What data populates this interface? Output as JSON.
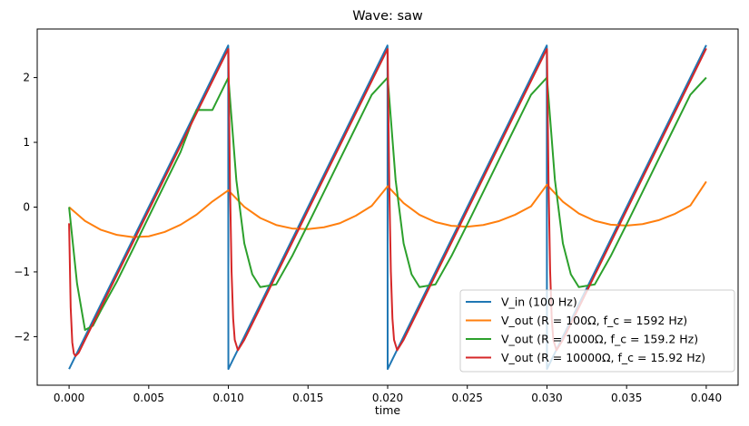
{
  "chart_data": {
    "type": "line",
    "title": "Wave: saw",
    "xlabel": "time",
    "ylabel": "",
    "xlim": [
      -0.002,
      0.042
    ],
    "ylim": [
      -2.75,
      2.75
    ],
    "xticks": [
      0.0,
      0.005,
      0.01,
      0.015,
      0.02,
      0.025,
      0.03,
      0.035,
      0.04
    ],
    "xtick_labels": [
      "0.000",
      "0.005",
      "0.010",
      "0.015",
      "0.020",
      "0.025",
      "0.030",
      "0.035",
      "0.040"
    ],
    "yticks": [
      -2,
      -1,
      0,
      1,
      2
    ],
    "ytick_labels": [
      "−2",
      "−1",
      "0",
      "1",
      "2"
    ],
    "grid": false,
    "legend_position": "lower-right",
    "series": [
      {
        "name": "V_in (100 Hz)",
        "color": "#1f77b4",
        "x": [
          0.0,
          0.00999,
          0.01,
          0.01999,
          0.02,
          0.02999,
          0.03,
          0.04
        ],
        "y": [
          -2.5,
          2.495,
          -2.5,
          2.495,
          -2.5,
          2.495,
          -2.5,
          2.5
        ]
      },
      {
        "name": "V_out (R = 100Ω, f_c = 1592 Hz)",
        "color": "#ff7f0e",
        "x": [
          0.0,
          0.001,
          0.002,
          0.003,
          0.004,
          0.005,
          0.006,
          0.007,
          0.008,
          0.009,
          0.01,
          0.011,
          0.012,
          0.013,
          0.014,
          0.015,
          0.016,
          0.017,
          0.018,
          0.019,
          0.02,
          0.021,
          0.022,
          0.023,
          0.024,
          0.025,
          0.026,
          0.027,
          0.028,
          0.029,
          0.03,
          0.031,
          0.032,
          0.033,
          0.034,
          0.035,
          0.036,
          0.037,
          0.038,
          0.039,
          0.04
        ],
        "y": [
          0.0,
          -0.214,
          -0.351,
          -0.429,
          -0.464,
          -0.451,
          -0.384,
          -0.272,
          -0.117,
          0.087,
          0.259,
          0.004,
          -0.168,
          -0.276,
          -0.33,
          -0.339,
          -0.311,
          -0.248,
          -0.133,
          0.019,
          0.322,
          0.062,
          -0.12,
          -0.231,
          -0.289,
          -0.302,
          -0.276,
          -0.215,
          -0.118,
          0.012,
          0.346,
          0.083,
          -0.099,
          -0.212,
          -0.271,
          -0.285,
          -0.262,
          -0.203,
          -0.108,
          0.024,
          0.395
        ]
      },
      {
        "name": "V_out (R = 1000Ω, f_c = 159.2 Hz)",
        "color": "#2ca02c",
        "x": [
          0.0,
          0.0005,
          0.001,
          0.0015,
          0.002,
          0.003,
          0.004,
          0.005,
          0.006,
          0.007,
          0.008,
          0.009,
          0.01,
          0.0105,
          0.011,
          0.0115,
          0.012,
          0.013,
          0.014,
          0.015,
          0.016,
          0.017,
          0.018,
          0.019,
          0.02,
          0.0205,
          0.021,
          0.0215,
          0.022,
          0.023,
          0.024,
          0.025,
          0.026,
          0.027,
          0.028,
          0.029,
          0.03,
          0.0305,
          0.031,
          0.0315,
          0.032,
          0.033,
          0.034,
          0.035,
          0.036,
          0.037,
          0.038,
          0.039,
          0.04
        ],
        "y": [
          0.0,
          -1.18,
          -1.897,
          -1.831,
          -1.594,
          -1.15,
          -0.655,
          -0.151,
          0.351,
          0.851,
          1.501,
          1.5,
          2.0,
          0.418,
          -0.559,
          -1.037,
          -1.235,
          -1.194,
          -0.758,
          -0.266,
          0.234,
          0.735,
          1.235,
          1.735,
          2.0,
          0.418,
          -0.559,
          -1.037,
          -1.235,
          -1.194,
          -0.758,
          -0.266,
          0.234,
          0.735,
          1.235,
          1.735,
          2.0,
          0.418,
          -0.559,
          -1.037,
          -1.235,
          -1.194,
          -0.758,
          -0.266,
          0.234,
          0.735,
          1.235,
          1.735,
          2.0
        ]
      },
      {
        "name": "V_out (R = 10000Ω, f_c = 15.92 Hz)",
        "color": "#d62728",
        "x": [
          0.0,
          0.0001,
          0.0002,
          0.0003,
          0.0004,
          0.0006,
          0.001,
          0.002,
          0.004,
          0.006,
          0.008,
          0.00999,
          0.01,
          0.0101,
          0.0102,
          0.0103,
          0.0104,
          0.0106,
          0.011,
          0.012,
          0.014,
          0.016,
          0.018,
          0.01999,
          0.02,
          0.0201,
          0.0202,
          0.0203,
          0.0204,
          0.0206,
          0.021,
          0.022,
          0.024,
          0.026,
          0.028,
          0.02999,
          0.03,
          0.0301,
          0.0302,
          0.0303,
          0.0304,
          0.0306,
          0.031,
          0.032,
          0.034,
          0.036,
          0.038,
          0.04
        ],
        "y": [
          -0.25,
          -1.55,
          -2.09,
          -2.26,
          -2.3,
          -2.25,
          -2.05,
          -1.55,
          -0.55,
          0.45,
          1.45,
          2.44,
          2.44,
          0.37,
          -0.99,
          -1.72,
          -2.05,
          -2.21,
          -2.05,
          -1.55,
          -0.55,
          0.45,
          1.45,
          2.44,
          2.44,
          0.37,
          -0.99,
          -1.72,
          -2.05,
          -2.21,
          -2.05,
          -1.55,
          -0.55,
          0.45,
          1.45,
          2.44,
          2.44,
          0.37,
          -0.99,
          -1.72,
          -2.05,
          -2.21,
          -2.05,
          -1.55,
          -0.55,
          0.45,
          1.45,
          2.45
        ]
      }
    ]
  }
}
